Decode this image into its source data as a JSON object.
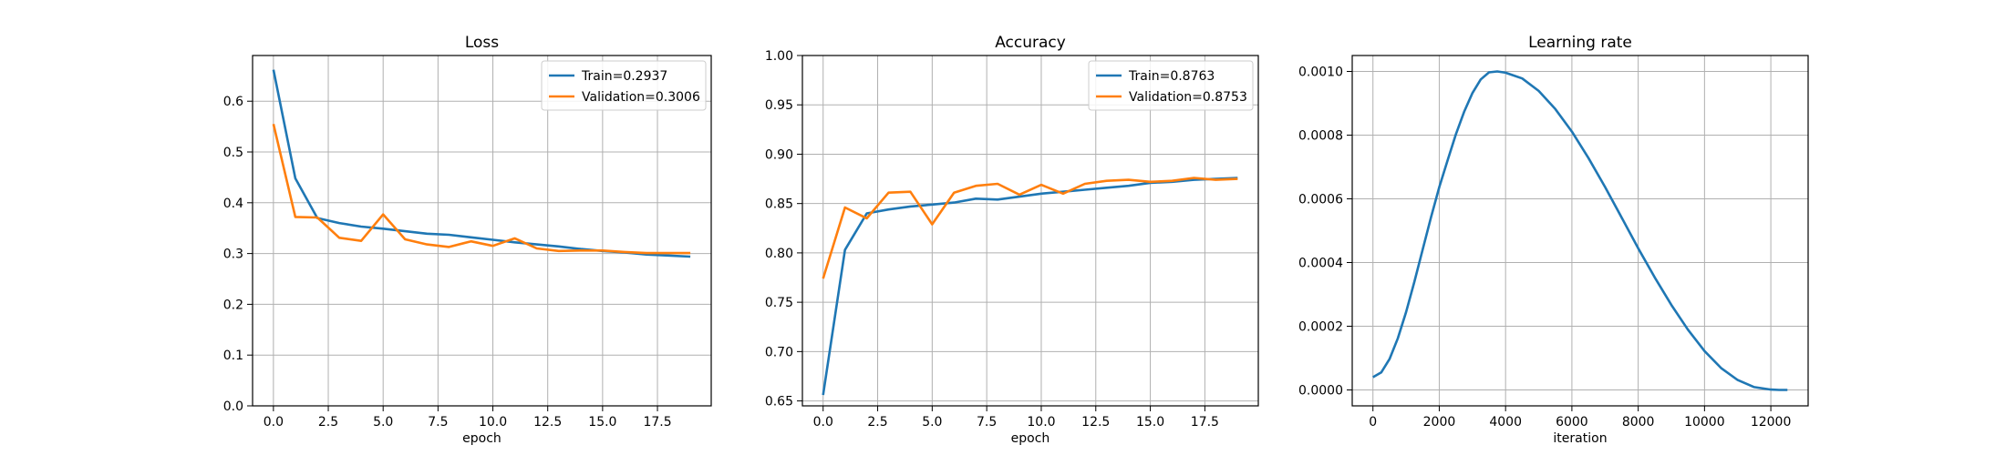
{
  "colors": {
    "train": "#1f77b4",
    "validation": "#ff7f0e"
  },
  "chart_data": [
    {
      "type": "line",
      "title": "Loss",
      "xlabel": "epoch",
      "ylabel": "",
      "xlim": [
        -0.95,
        19.95
      ],
      "ylim": [
        0.0,
        0.69
      ],
      "xticks": [
        0.0,
        2.5,
        5.0,
        7.5,
        10.0,
        12.5,
        15.0,
        17.5
      ],
      "xtick_labels": [
        "0.0",
        "2.5",
        "5.0",
        "7.5",
        "10.0",
        "12.5",
        "15.0",
        "17.5"
      ],
      "yticks": [
        0.0,
        0.1,
        0.2,
        0.3,
        0.4,
        0.5,
        0.6
      ],
      "ytick_labels": [
        "0.0",
        "0.1",
        "0.2",
        "0.3",
        "0.4",
        "0.5",
        "0.6"
      ],
      "grid": true,
      "legend": "top-right",
      "x": [
        0,
        1,
        2,
        3,
        4,
        5,
        6,
        7,
        8,
        9,
        10,
        11,
        12,
        13,
        14,
        15,
        16,
        17,
        18,
        19
      ],
      "series": [
        {
          "name": "Train=0.2937",
          "color": "#1f77b4",
          "values": [
            0.662,
            0.448,
            0.37,
            0.36,
            0.353,
            0.349,
            0.344,
            0.339,
            0.337,
            0.332,
            0.327,
            0.322,
            0.318,
            0.314,
            0.309,
            0.305,
            0.302,
            0.298,
            0.296,
            0.294
          ]
        },
        {
          "name": "Validation=0.3006",
          "color": "#ff7f0e",
          "values": [
            0.555,
            0.372,
            0.371,
            0.331,
            0.325,
            0.377,
            0.328,
            0.318,
            0.313,
            0.324,
            0.315,
            0.33,
            0.31,
            0.305,
            0.306,
            0.306,
            0.303,
            0.301,
            0.301,
            0.301
          ]
        }
      ]
    },
    {
      "type": "line",
      "title": "Accuracy",
      "xlabel": "epoch",
      "ylabel": "",
      "xlim": [
        -0.95,
        19.95
      ],
      "ylim": [
        0.645,
        1.0
      ],
      "xticks": [
        0.0,
        2.5,
        5.0,
        7.5,
        10.0,
        12.5,
        15.0,
        17.5
      ],
      "xtick_labels": [
        "0.0",
        "2.5",
        "5.0",
        "7.5",
        "10.0",
        "12.5",
        "15.0",
        "17.5"
      ],
      "yticks": [
        0.65,
        0.7,
        0.75,
        0.8,
        0.85,
        0.9,
        0.95,
        1.0
      ],
      "ytick_labels": [
        "0.65",
        "0.70",
        "0.75",
        "0.80",
        "0.85",
        "0.90",
        "0.95",
        "1.00"
      ],
      "grid": true,
      "legend": "top-right",
      "x": [
        0,
        1,
        2,
        3,
        4,
        5,
        6,
        7,
        8,
        9,
        10,
        11,
        12,
        13,
        14,
        15,
        16,
        17,
        18,
        19
      ],
      "series": [
        {
          "name": "Train=0.8763",
          "color": "#1f77b4",
          "values": [
            0.656,
            0.803,
            0.84,
            0.844,
            0.847,
            0.849,
            0.851,
            0.855,
            0.854,
            0.857,
            0.86,
            0.862,
            0.864,
            0.866,
            0.868,
            0.871,
            0.872,
            0.874,
            0.875,
            0.876
          ]
        },
        {
          "name": "Validation=0.8753",
          "color": "#ff7f0e",
          "values": [
            0.774,
            0.846,
            0.835,
            0.861,
            0.862,
            0.829,
            0.861,
            0.868,
            0.87,
            0.859,
            0.869,
            0.86,
            0.87,
            0.873,
            0.874,
            0.872,
            0.873,
            0.876,
            0.874,
            0.875
          ]
        }
      ]
    },
    {
      "type": "line",
      "title": "Learning rate",
      "xlabel": "iteration",
      "ylabel": "",
      "xlim": [
        -625,
        13125
      ],
      "ylim": [
        -5e-05,
        0.00105
      ],
      "xticks": [
        0,
        2000,
        4000,
        6000,
        8000,
        10000,
        12000
      ],
      "xtick_labels": [
        "0",
        "2000",
        "4000",
        "6000",
        "8000",
        "10000",
        "12000"
      ],
      "yticks": [
        0.0,
        0.0002,
        0.0004,
        0.0006,
        0.0008,
        0.001
      ],
      "ytick_labels": [
        "0.0000",
        "0.0002",
        "0.0004",
        "0.0006",
        "0.0008",
        "0.0010"
      ],
      "grid": true,
      "legend": "none",
      "x": [
        0,
        250,
        500,
        750,
        1000,
        1250,
        1500,
        1750,
        2000,
        2250,
        2500,
        2750,
        3000,
        3250,
        3500,
        3750,
        4000,
        4500,
        5000,
        5500,
        6000,
        6500,
        7000,
        7500,
        8000,
        8500,
        9000,
        9500,
        10000,
        10500,
        11000,
        11500,
        12000,
        12250,
        12500
      ],
      "series": [
        {
          "name": "",
          "color": "#1f77b4",
          "values": [
            4e-05,
            5.5e-05,
            9.7e-05,
            0.000162,
            0.000245,
            0.00034,
            0.000441,
            0.000542,
            0.000637,
            0.00072,
            0.000802,
            0.000873,
            0.000932,
            0.000975,
            0.000997,
            0.001,
            0.000996,
            0.000978,
            0.000939,
            0.000882,
            0.000811,
            0.000728,
            0.000637,
            0.000541,
            0.000445,
            0.000353,
            0.000267,
            0.000189,
            0.000122,
            6.9e-05,
            3.1e-05,
            9e-06,
            1e-06,
            0.0,
            0.0
          ]
        }
      ]
    }
  ]
}
